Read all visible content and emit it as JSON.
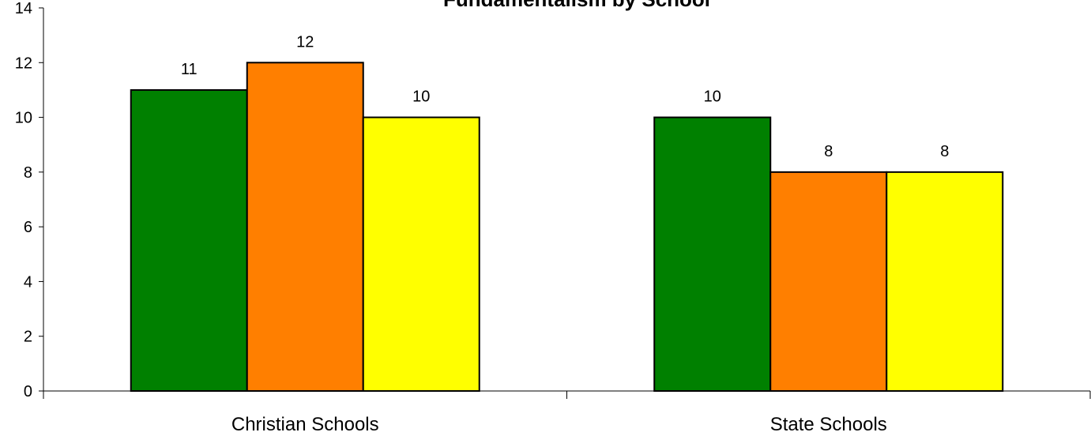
{
  "chart_data": {
    "type": "bar",
    "title": "Fundamentalism by School",
    "xlabel": "",
    "ylabel": "",
    "categories": [
      "Christian Schools",
      "State Schools"
    ],
    "series": [
      {
        "values": [
          11,
          10
        ],
        "color": "#008000"
      },
      {
        "values": [
          12,
          8
        ],
        "color": "#FF7F00"
      },
      {
        "values": [
          10,
          8
        ],
        "color": "#FFFF00"
      }
    ],
    "ylim": [
      0,
      14
    ],
    "yticks": [
      "0",
      "2",
      "4",
      "6",
      "8",
      "10",
      "12",
      "14"
    ],
    "grid": false,
    "legend": "none",
    "data_labels": true
  }
}
